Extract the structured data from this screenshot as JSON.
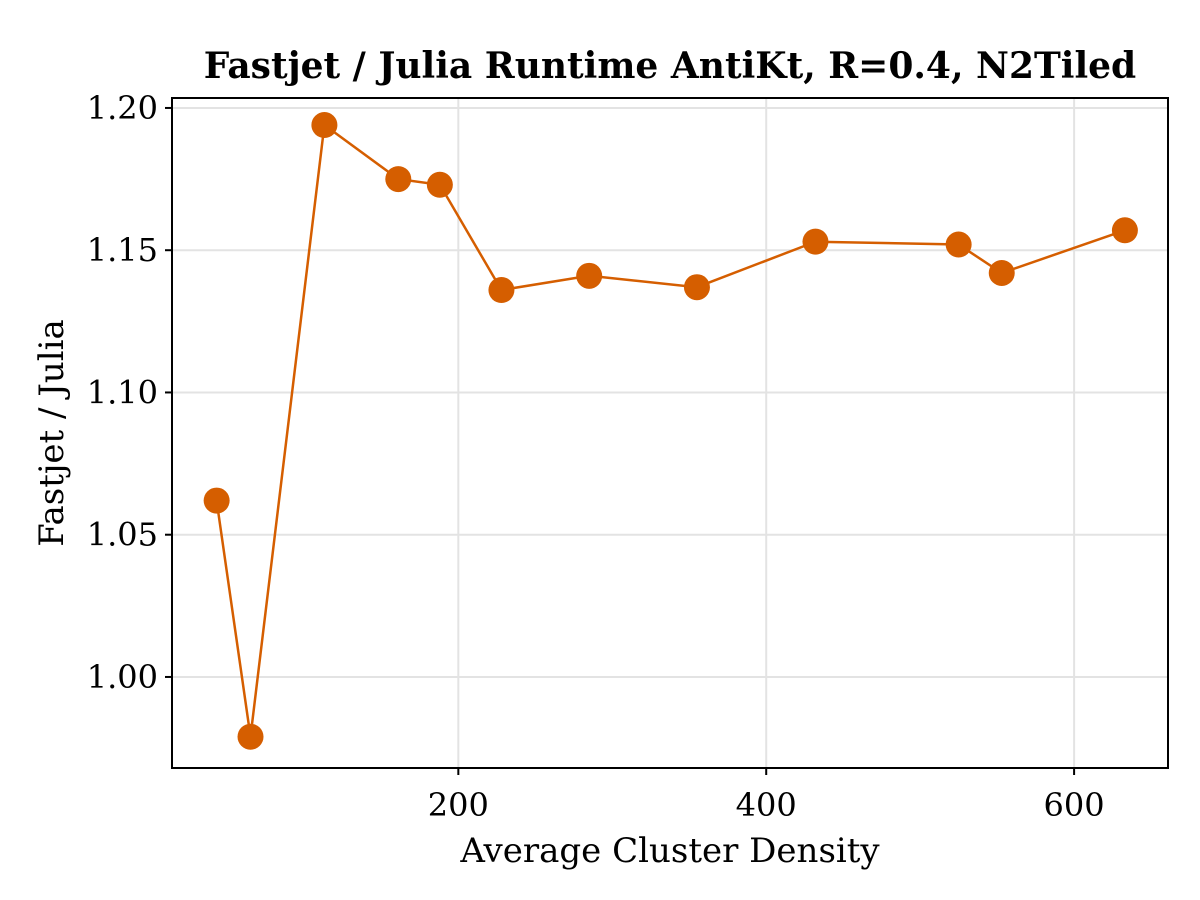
{
  "chart_data": {
    "type": "line",
    "title": "Fastjet / Julia Runtime AntiKt, R=0.4, N2Tiled",
    "xlabel": "Average Cluster Density",
    "ylabel": "Fastjet / Julia",
    "xlim": [
      14,
      661
    ],
    "ylim": [
      0.968,
      1.2035
    ],
    "xticks": [
      200,
      400,
      600
    ],
    "xtick_labels": [
      "200",
      "400",
      "600"
    ],
    "yticks": [
      1.0,
      1.05,
      1.1,
      1.15,
      1.2
    ],
    "ytick_labels": [
      "1.00",
      "1.05",
      "1.10",
      "1.15",
      "1.20"
    ],
    "grid": true,
    "legend": "none",
    "series": [
      {
        "color": "#d55e00",
        "marker": "circle",
        "x": [
          43,
          65,
          113,
          161,
          188,
          228,
          285,
          355,
          432,
          525,
          553,
          633
        ],
        "y": [
          1.062,
          0.979,
          1.194,
          1.175,
          1.173,
          1.136,
          1.141,
          1.137,
          1.153,
          1.152,
          1.142,
          1.157
        ]
      }
    ]
  }
}
